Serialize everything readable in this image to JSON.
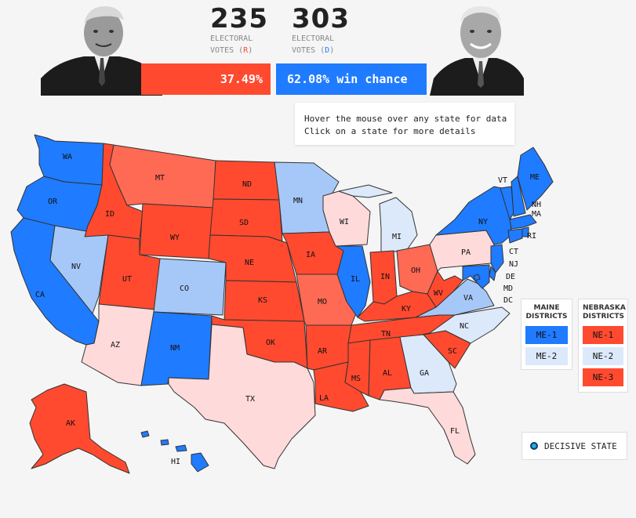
{
  "header": {
    "rep": {
      "ev": "235",
      "label_line1": "ELECTORAL",
      "label_line2": "VOTES",
      "party": "R",
      "chance": "37.49%"
    },
    "dem": {
      "ev": "303",
      "label_line1": "ELECTORAL",
      "label_line2": "VOTES",
      "party": "D",
      "chance": "62.08%",
      "chance_suffix": "win chance"
    }
  },
  "hint": {
    "line1": "Hover the mouse over any state for data",
    "line2": "Click on a state for more details"
  },
  "colors": {
    "safe_r": "#ff4a2f",
    "likely_r": "#ff6a55",
    "lean_r": "#ffdada",
    "safe_d": "#1f7bff",
    "likely_d": "#a6c8f8",
    "lean_d": "#dce9fb"
  },
  "states": [
    "WA",
    "OR",
    "CA",
    "NV",
    "ID",
    "MT",
    "WY",
    "UT",
    "AZ",
    "CO",
    "NM",
    "ND",
    "SD",
    "NE",
    "KS",
    "OK",
    "TX",
    "MN",
    "IA",
    "MO",
    "AR",
    "LA",
    "WI",
    "IL",
    "MI",
    "IN",
    "OH",
    "KY",
    "TN",
    "MS",
    "AL",
    "GA",
    "FL",
    "SC",
    "NC",
    "VA",
    "WV",
    "PA",
    "NY",
    "VT",
    "NH",
    "ME",
    "MA",
    "RI",
    "CT",
    "NJ",
    "DE",
    "MD",
    "DC",
    "AK",
    "HI"
  ],
  "maine": {
    "title_line1": "MAINE",
    "title_line2": "DISTRICTS",
    "districts": [
      "ME-1",
      "ME-2"
    ]
  },
  "nebraska": {
    "title_line1": "NEBRASKA",
    "title_line2": "DISTRICTS",
    "districts": [
      "NE-1",
      "NE-2",
      "NE-3"
    ]
  },
  "legend": {
    "label": "DECISIVE STATE",
    "icon": "decisive-dot-icon"
  }
}
